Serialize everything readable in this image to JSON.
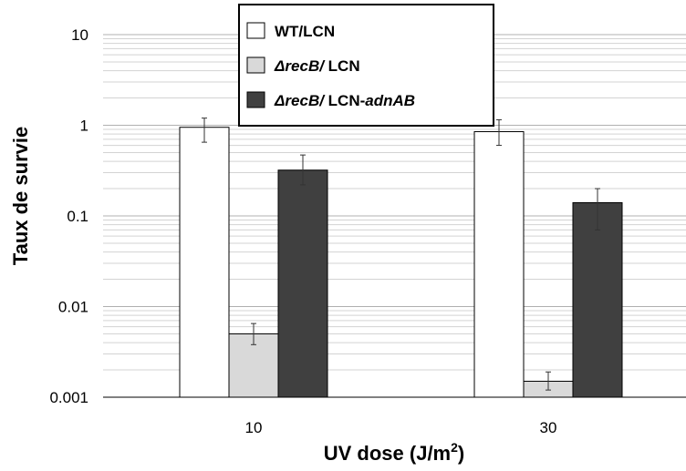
{
  "chart_data": {
    "type": "bar",
    "yscale": "log",
    "ylim": [
      0.001,
      10
    ],
    "ylabel": "Taux de survie",
    "xlabel": "UV dose (J/m",
    "xlabel_sup": "2",
    "xlabel_suffix": ")",
    "y_ticks": [
      {
        "value": 10,
        "label": "10"
      },
      {
        "value": 1,
        "label": "1"
      },
      {
        "value": 0.1,
        "label": "0.1"
      },
      {
        "value": 0.01,
        "label": "0.01"
      },
      {
        "value": 0.001,
        "label": "0.001"
      }
    ],
    "categories": [
      "10",
      "30"
    ],
    "grid": true,
    "legend_position": "top-center",
    "series": [
      {
        "name_parts": [
          {
            "text": "WT/LCN",
            "italic": false
          }
        ],
        "color": "#ffffff",
        "values": [
          0.95,
          0.85
        ],
        "error_low": [
          0.65,
          0.6
        ],
        "error_high": [
          1.2,
          1.15
        ]
      },
      {
        "name_parts": [
          {
            "text": "ΔrecB/",
            "italic": true
          },
          {
            "text": " LCN",
            "italic": false
          }
        ],
        "color": "#d9d9d9",
        "values": [
          0.005,
          0.0015
        ],
        "error_low": [
          0.0038,
          0.0012
        ],
        "error_high": [
          0.0065,
          0.0019
        ]
      },
      {
        "name_parts": [
          {
            "text": "ΔrecB/",
            "italic": true
          },
          {
            "text": " LCN-",
            "italic": false
          },
          {
            "text": "adnAB",
            "italic": true
          }
        ],
        "color": "#404040",
        "values": [
          0.32,
          0.14
        ],
        "error_low": [
          0.22,
          0.07
        ],
        "error_high": [
          0.47,
          0.2
        ]
      }
    ]
  }
}
